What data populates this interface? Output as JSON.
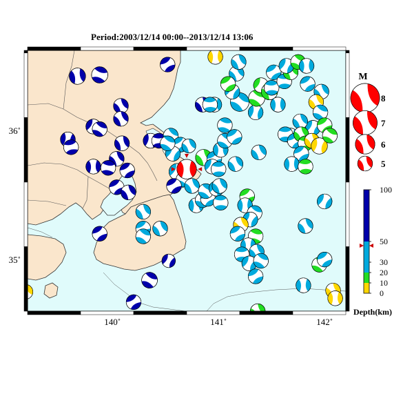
{
  "title": "Period:2003/12/14 00:00--2013/12/14 13:06",
  "map": {
    "lon_range": [
      139.2,
      142.2
    ],
    "lat_range": [
      34.6,
      36.62
    ],
    "lon_ticks": [
      140,
      141,
      142
    ],
    "lat_ticks": [
      35,
      36
    ],
    "lon_labels": [
      "140˚",
      "141˚",
      "142˚"
    ],
    "lat_labels": [
      "35˚",
      "36˚"
    ],
    "colors": {
      "land": "#fae6cc",
      "sea": "#e0fbfb",
      "coast": "#333333",
      "border": "#444444"
    }
  },
  "magnitude_legend": {
    "title": "M",
    "items": [
      {
        "label": "8",
        "mag": 8
      },
      {
        "label": "7",
        "mag": 7
      },
      {
        "label": "6",
        "mag": 6
      },
      {
        "label": "5",
        "mag": 5
      }
    ],
    "color": "#ff0000"
  },
  "depth_legend": {
    "title": "Depth(km)",
    "ticks": [
      "100",
      "50",
      "30",
      "20",
      "10",
      "0"
    ],
    "bands": [
      {
        "from": 0,
        "to": 10,
        "color": "#ffd700"
      },
      {
        "from": 10,
        "to": 20,
        "color": "#22dd22"
      },
      {
        "from": 20,
        "to": 50,
        "color": "#00aadd"
      },
      {
        "from": 50,
        "to": 100,
        "color": "#0000aa"
      }
    ],
    "marker_depth": 46
  },
  "mechanisms": [
    {
      "lon": 139.67,
      "lat": 36.42,
      "mag": 5.3,
      "depth": 70,
      "rot": 20
    },
    {
      "lon": 139.88,
      "lat": 36.43,
      "mag": 5.3,
      "depth": 70,
      "rot": -40
    },
    {
      "lon": 140.52,
      "lat": 36.51,
      "mag": 5.0,
      "depth": 70,
      "rot": 90
    },
    {
      "lon": 140.08,
      "lat": 36.19,
      "mag": 5.0,
      "depth": 70,
      "rot": 0
    },
    {
      "lon": 140.08,
      "lat": 36.09,
      "mag": 5.0,
      "depth": 70,
      "rot": 180
    },
    {
      "lon": 139.82,
      "lat": 36.03,
      "mag": 5.0,
      "depth": 70,
      "rot": 60
    },
    {
      "lon": 139.88,
      "lat": 36.01,
      "mag": 5.0,
      "depth": 70,
      "rot": -30
    },
    {
      "lon": 139.58,
      "lat": 35.93,
      "mag": 5.0,
      "depth": 70,
      "rot": 40
    },
    {
      "lon": 139.61,
      "lat": 35.87,
      "mag": 5.0,
      "depth": 70,
      "rot": -70
    },
    {
      "lon": 140.09,
      "lat": 35.9,
      "mag": 5.0,
      "depth": 70,
      "rot": 10
    },
    {
      "lon": 140.04,
      "lat": 35.78,
      "mag": 5.0,
      "depth": 70,
      "rot": 180
    },
    {
      "lon": 139.96,
      "lat": 35.71,
      "mag": 5.0,
      "depth": 70,
      "rot": -50
    },
    {
      "lon": 139.82,
      "lat": 35.72,
      "mag": 5.0,
      "depth": 70,
      "rot": 30
    },
    {
      "lon": 140.14,
      "lat": 35.69,
      "mag": 5.0,
      "depth": 70,
      "rot": 90
    },
    {
      "lon": 140.04,
      "lat": 35.56,
      "mag": 5.0,
      "depth": 70,
      "rot": 90
    },
    {
      "lon": 140.15,
      "lat": 35.52,
      "mag": 5.0,
      "depth": 70,
      "rot": 0
    },
    {
      "lon": 140.36,
      "lat": 35.92,
      "mag": 5.0,
      "depth": 70,
      "rot": 45
    },
    {
      "lon": 140.44,
      "lat": 35.92,
      "mag": 5.0,
      "depth": 70,
      "rot": 120
    },
    {
      "lon": 140.55,
      "lat": 35.96,
      "mag": 5.0,
      "depth": 40,
      "rot": -20
    },
    {
      "lon": 140.59,
      "lat": 35.87,
      "mag": 5.0,
      "depth": 40,
      "rot": 30
    },
    {
      "lon": 140.64,
      "lat": 35.89,
      "mag": 5.0,
      "depth": 40,
      "rot": 90
    },
    {
      "lon": 140.57,
      "lat": 35.82,
      "mag": 5.0,
      "depth": 40,
      "rot": 60
    },
    {
      "lon": 140.52,
      "lat": 35.9,
      "mag": 5.0,
      "depth": 40,
      "rot": 150
    },
    {
      "lon": 140.61,
      "lat": 35.68,
      "mag": 5.3,
      "depth": 40,
      "rot": 60
    },
    {
      "lon": 140.67,
      "lat": 35.62,
      "mag": 5.0,
      "depth": 40,
      "rot": -30
    },
    {
      "lon": 140.58,
      "lat": 35.57,
      "mag": 5.0,
      "depth": 70,
      "rot": 90
    },
    {
      "lon": 140.7,
      "lat": 35.7,
      "mag": 6.0,
      "depth": 46,
      "rot": 30,
      "highlight": true
    },
    {
      "lon": 140.72,
      "lat": 35.88,
      "mag": 4.8,
      "depth": 40,
      "rot": 0
    },
    {
      "lon": 140.29,
      "lat": 35.37,
      "mag": 5.0,
      "depth": 40,
      "rot": 0
    },
    {
      "lon": 140.29,
      "lat": 35.24,
      "mag": 5.0,
      "depth": 40,
      "rot": 90
    },
    {
      "lon": 140.29,
      "lat": 35.18,
      "mag": 5.0,
      "depth": 40,
      "rot": -30
    },
    {
      "lon": 140.45,
      "lat": 35.24,
      "mag": 5.0,
      "depth": 40,
      "rot": 180
    },
    {
      "lon": 139.88,
      "lat": 35.2,
      "mag": 5.0,
      "depth": 70,
      "rot": 90
    },
    {
      "lon": 140.53,
      "lat": 34.99,
      "mag": 4.7,
      "depth": 70,
      "rot": 60
    },
    {
      "lon": 140.35,
      "lat": 34.84,
      "mag": 5.2,
      "depth": 70,
      "rot": -30
    },
    {
      "lon": 140.2,
      "lat": 34.67,
      "mag": 5.0,
      "depth": 70,
      "rot": 90
    },
    {
      "lon": 139.18,
      "lat": 34.75,
      "mag": 5.0,
      "depth": 5,
      "rot": 0
    },
    {
      "lon": 140.75,
      "lat": 35.57,
      "mag": 5.0,
      "depth": 40,
      "rot": 0
    },
    {
      "lon": 140.79,
      "lat": 35.42,
      "mag": 5.0,
      "depth": 40,
      "rot": 30
    },
    {
      "lon": 140.85,
      "lat": 35.46,
      "mag": 5.0,
      "depth": 40,
      "rot": -30
    },
    {
      "lon": 140.9,
      "lat": 35.47,
      "mag": 5.0,
      "depth": 40,
      "rot": 90
    },
    {
      "lon": 140.88,
      "lat": 35.53,
      "mag": 5.0,
      "depth": 40,
      "rot": 150
    },
    {
      "lon": 140.98,
      "lat": 35.55,
      "mag": 5.0,
      "depth": 40,
      "rot": 60
    },
    {
      "lon": 141.01,
      "lat": 35.57,
      "mag": 5.0,
      "depth": 40,
      "rot": 0
    },
    {
      "lon": 141.02,
      "lat": 35.44,
      "mag": 5.0,
      "depth": 40,
      "rot": -60
    },
    {
      "lon": 140.86,
      "lat": 35.79,
      "mag": 5.3,
      "depth": 15,
      "rot": 0
    },
    {
      "lon": 140.96,
      "lat": 35.78,
      "mag": 5.0,
      "depth": 40,
      "rot": 90
    },
    {
      "lon": 141.02,
      "lat": 35.85,
      "mag": 5.0,
      "depth": 40,
      "rot": 30
    },
    {
      "lon": 141.06,
      "lat": 35.92,
      "mag": 5.0,
      "depth": 40,
      "rot": -30
    },
    {
      "lon": 140.94,
      "lat": 35.72,
      "mag": 5.0,
      "depth": 40,
      "rot": 60
    },
    {
      "lon": 141.0,
      "lat": 35.7,
      "mag": 5.0,
      "depth": 40,
      "rot": 120
    },
    {
      "lon": 141.16,
      "lat": 35.74,
      "mag": 5.0,
      "depth": 40,
      "rot": 0
    },
    {
      "lon": 141.15,
      "lat": 35.95,
      "mag": 5.0,
      "depth": 40,
      "rot": 90
    },
    {
      "lon": 140.85,
      "lat": 36.2,
      "mag": 5.0,
      "depth": 70,
      "rot": 0
    },
    {
      "lon": 140.96,
      "lat": 36.2,
      "mag": 5.0,
      "depth": 40,
      "rot": 30
    },
    {
      "lon": 140.92,
      "lat": 36.2,
      "mag": 5.0,
      "depth": 40,
      "rot": 120
    },
    {
      "lon": 141.06,
      "lat": 36.04,
      "mag": 5.0,
      "depth": 40,
      "rot": -45
    },
    {
      "lon": 141.2,
      "lat": 36.22,
      "mag": 5.8,
      "depth": 40,
      "rot": -20
    },
    {
      "lon": 141.13,
      "lat": 36.3,
      "mag": 5.0,
      "depth": 40,
      "rot": 60
    },
    {
      "lon": 141.17,
      "lat": 36.44,
      "mag": 5.0,
      "depth": 40,
      "rot": 0
    },
    {
      "lon": 141.09,
      "lat": 36.36,
      "mag": 5.0,
      "depth": 15,
      "rot": 90
    },
    {
      "lon": 140.97,
      "lat": 36.57,
      "mag": 5.0,
      "depth": 5,
      "rot": 30
    },
    {
      "lon": 141.19,
      "lat": 36.53,
      "mag": 5.0,
      "depth": 40,
      "rot": 0
    },
    {
      "lon": 141.35,
      "lat": 36.14,
      "mag": 5.0,
      "depth": 40,
      "rot": 45
    },
    {
      "lon": 141.36,
      "lat": 36.25,
      "mag": 5.3,
      "depth": 15,
      "rot": -30
    },
    {
      "lon": 141.4,
      "lat": 36.35,
      "mag": 5.0,
      "depth": 15,
      "rot": 60
    },
    {
      "lon": 141.48,
      "lat": 36.3,
      "mag": 5.3,
      "depth": 15,
      "rot": 0
    },
    {
      "lon": 141.56,
      "lat": 36.2,
      "mag": 5.0,
      "depth": 40,
      "rot": 30
    },
    {
      "lon": 141.5,
      "lat": 36.33,
      "mag": 5.0,
      "depth": 40,
      "rot": -60
    },
    {
      "lon": 141.52,
      "lat": 36.45,
      "mag": 5.0,
      "depth": 40,
      "rot": 90
    },
    {
      "lon": 141.62,
      "lat": 36.38,
      "mag": 5.0,
      "depth": 40,
      "rot": 120
    },
    {
      "lon": 141.68,
      "lat": 36.45,
      "mag": 5.0,
      "depth": 15,
      "rot": 0
    },
    {
      "lon": 141.64,
      "lat": 36.5,
      "mag": 5.0,
      "depth": 40,
      "rot": 60
    },
    {
      "lon": 141.75,
      "lat": 36.53,
      "mag": 5.0,
      "depth": 15,
      "rot": -30
    },
    {
      "lon": 141.83,
      "lat": 36.5,
      "mag": 5.0,
      "depth": 40,
      "rot": 30
    },
    {
      "lon": 141.84,
      "lat": 36.36,
      "mag": 5.0,
      "depth": 40,
      "rot": 90
    },
    {
      "lon": 141.97,
      "lat": 36.3,
      "mag": 5.0,
      "depth": 40,
      "rot": 0
    },
    {
      "lon": 141.92,
      "lat": 36.22,
      "mag": 5.0,
      "depth": 5,
      "rot": 0
    },
    {
      "lon": 141.96,
      "lat": 36.14,
      "mag": 5.0,
      "depth": 40,
      "rot": -30
    },
    {
      "lon": 141.89,
      "lat": 36.02,
      "mag": 5.0,
      "depth": 40,
      "rot": 60
    },
    {
      "lon": 142.0,
      "lat": 36.04,
      "mag": 5.0,
      "depth": 15,
      "rot": 90
    },
    {
      "lon": 141.77,
      "lat": 36.07,
      "mag": 5.0,
      "depth": 40,
      "rot": 0
    },
    {
      "lon": 141.68,
      "lat": 35.96,
      "mag": 5.0,
      "depth": 40,
      "rot": 30
    },
    {
      "lon": 141.63,
      "lat": 35.97,
      "mag": 5.0,
      "depth": 40,
      "rot": -60
    },
    {
      "lon": 141.72,
      "lat": 35.92,
      "mag": 5.0,
      "depth": 40,
      "rot": 90
    },
    {
      "lon": 141.78,
      "lat": 35.97,
      "mag": 5.0,
      "depth": 15,
      "rot": 0
    },
    {
      "lon": 141.82,
      "lat": 35.9,
      "mag": 5.0,
      "depth": 15,
      "rot": 120
    },
    {
      "lon": 141.88,
      "lat": 35.92,
      "mag": 5.0,
      "depth": 5,
      "rot": 0
    },
    {
      "lon": 141.95,
      "lat": 35.88,
      "mag": 5.3,
      "depth": 5,
      "rot": 45
    },
    {
      "lon": 142.05,
      "lat": 35.96,
      "mag": 5.0,
      "depth": 15,
      "rot": -30
    },
    {
      "lon": 141.78,
      "lat": 35.82,
      "mag": 5.0,
      "depth": 40,
      "rot": 90
    },
    {
      "lon": 141.69,
      "lat": 35.74,
      "mag": 5.0,
      "depth": 40,
      "rot": 30
    },
    {
      "lon": 141.82,
      "lat": 35.72,
      "mag": 5.0,
      "depth": 15,
      "rot": -60
    },
    {
      "lon": 141.38,
      "lat": 35.83,
      "mag": 5.0,
      "depth": 40,
      "rot": 0
    },
    {
      "lon": 141.27,
      "lat": 35.49,
      "mag": 5.0,
      "depth": 15,
      "rot": 90
    },
    {
      "lon": 141.25,
      "lat": 35.42,
      "mag": 5.0,
      "depth": 40,
      "rot": 30
    },
    {
      "lon": 141.34,
      "lat": 35.36,
      "mag": 5.0,
      "depth": 40,
      "rot": -30
    },
    {
      "lon": 141.3,
      "lat": 35.31,
      "mag": 5.0,
      "depth": 40,
      "rot": 60
    },
    {
      "lon": 141.21,
      "lat": 35.27,
      "mag": 5.0,
      "depth": 5,
      "rot": 0
    },
    {
      "lon": 141.18,
      "lat": 35.2,
      "mag": 5.0,
      "depth": 40,
      "rot": 90
    },
    {
      "lon": 141.35,
      "lat": 35.18,
      "mag": 5.0,
      "depth": 15,
      "rot": -45
    },
    {
      "lon": 141.28,
      "lat": 35.11,
      "mag": 5.0,
      "depth": 40,
      "rot": 30
    },
    {
      "lon": 141.36,
      "lat": 35.06,
      "mag": 5.0,
      "depth": 40,
      "rot": 0
    },
    {
      "lon": 141.22,
      "lat": 35.04,
      "mag": 5.0,
      "depth": 40,
      "rot": 120
    },
    {
      "lon": 141.29,
      "lat": 34.97,
      "mag": 5.0,
      "depth": 40,
      "rot": 60
    },
    {
      "lon": 141.4,
      "lat": 34.99,
      "mag": 5.0,
      "depth": 40,
      "rot": -30
    },
    {
      "lon": 141.35,
      "lat": 34.87,
      "mag": 5.0,
      "depth": 40,
      "rot": 90
    },
    {
      "lon": 141.37,
      "lat": 34.6,
      "mag": 5.0,
      "depth": 15,
      "rot": 0
    },
    {
      "lon": 141.8,
      "lat": 34.8,
      "mag": 5.0,
      "depth": 40,
      "rot": 30
    },
    {
      "lon": 141.82,
      "lat": 35.26,
      "mag": 5.0,
      "depth": 40,
      "rot": 0
    },
    {
      "lon": 142.0,
      "lat": 35.45,
      "mag": 5.0,
      "depth": 40,
      "rot": 60
    },
    {
      "lon": 141.95,
      "lat": 34.96,
      "mag": 5.0,
      "depth": 15,
      "rot": -30
    },
    {
      "lon": 142.0,
      "lat": 35.0,
      "mag": 5.0,
      "depth": 40,
      "rot": 90
    },
    {
      "lon": 142.08,
      "lat": 34.76,
      "mag": 5.0,
      "depth": 5,
      "rot": 0
    },
    {
      "lon": 142.1,
      "lat": 34.7,
      "mag": 5.0,
      "depth": 5,
      "rot": 30
    }
  ]
}
